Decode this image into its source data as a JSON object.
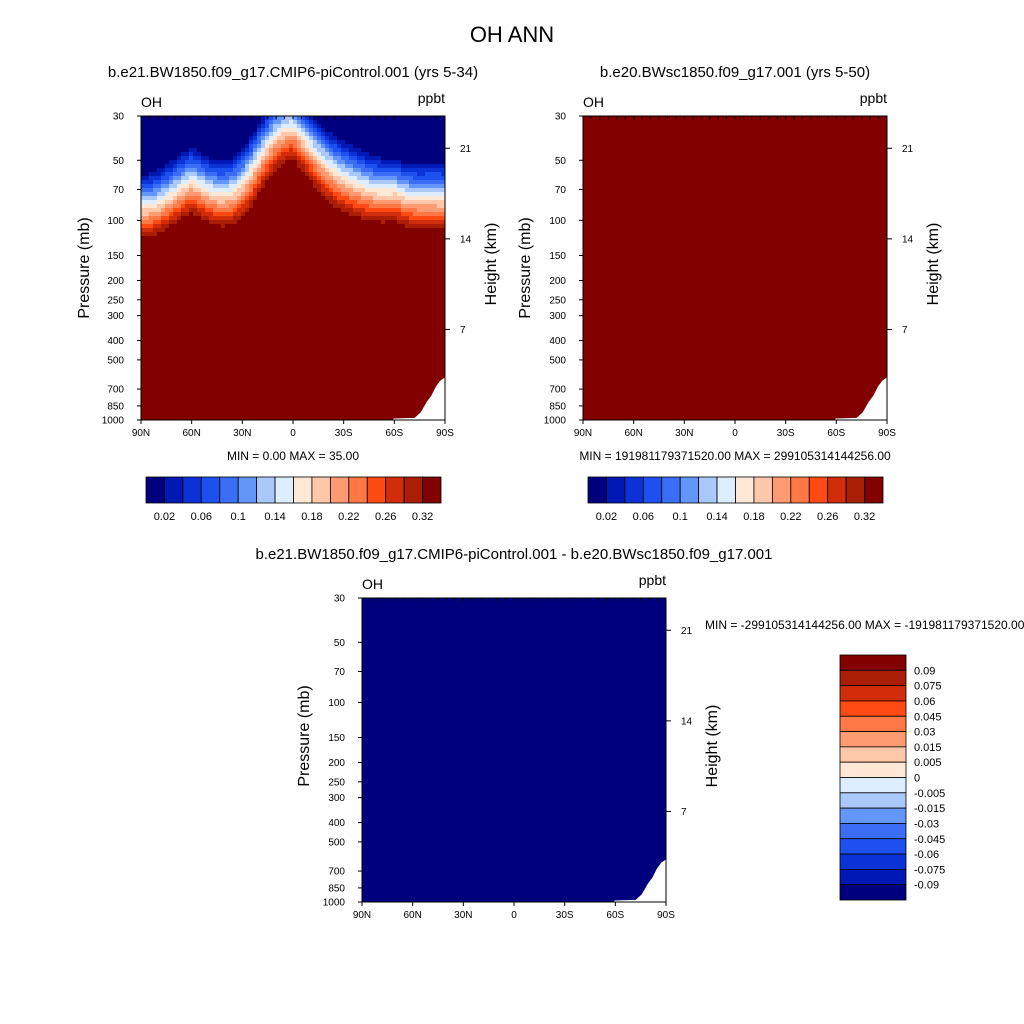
{
  "title": "OH ANN",
  "colors": {
    "palette": [
      "#00007f",
      "#0019b4",
      "#0a32d7",
      "#1e50f0",
      "#3c6ef5",
      "#6496fa",
      "#aac8fa",
      "#dceeff",
      "#ffe8d6",
      "#ffc8aa",
      "#ff9b73",
      "#ff7846",
      "#ff4a14",
      "#d22d0a",
      "#aa1e05",
      "#820000"
    ],
    "diff_palette": [
      "#00007f",
      "#0019b4",
      "#0a32d7",
      "#1e50f0",
      "#3c6ef5",
      "#6496fa",
      "#aac8fa",
      "#dceeff",
      "#ffe8d6",
      "#ffc8aa",
      "#ff9b73",
      "#ff7846",
      "#ff4a14",
      "#d22d0a",
      "#aa1e05",
      "#820000"
    ]
  },
  "chart_data": [
    {
      "type": "heatmap",
      "title": "b.e21.BW1850.f09_g17.CMIP6-piControl.001 (yrs 5-34)",
      "left_label": "OH",
      "right_label": "ppbt",
      "xlabel": "",
      "ylabel": "Pressure (mb)",
      "ylabel_right": "Height (km)",
      "x_ticks": [
        "90N",
        "60N",
        "30N",
        "0",
        "30S",
        "60S",
        "90S"
      ],
      "y_ticks": [
        "30",
        "50",
        "70",
        "100",
        "150",
        "200",
        "250",
        "300",
        "400",
        "500",
        "700",
        "850",
        "1000"
      ],
      "y_ticks_right": [
        "21",
        "14",
        "7"
      ],
      "ylim": [
        1000,
        30
      ],
      "y_scale": "log",
      "min_label": "MIN =   0.00  MAX =  35.00",
      "colorbar_labels": [
        "0.02",
        "0.06",
        "0.1",
        "0.14",
        "0.18",
        "0.22",
        "0.26",
        "0.32"
      ],
      "field": "zonal mean OH"
    },
    {
      "type": "heatmap",
      "title": "b.e20.BWsc1850.f09_g17.001 (yrs 5-50)",
      "left_label": "OH",
      "right_label": "ppbt",
      "xlabel": "",
      "ylabel": "Pressure (mb)",
      "ylabel_right": "Height (km)",
      "x_ticks": [
        "90N",
        "60N",
        "30N",
        "0",
        "30S",
        "60S",
        "90S"
      ],
      "y_ticks": [
        "30",
        "50",
        "70",
        "100",
        "150",
        "200",
        "250",
        "300",
        "400",
        "500",
        "700",
        "850",
        "1000"
      ],
      "y_ticks_right": [
        "21",
        "14",
        "7"
      ],
      "ylim": [
        1000,
        30
      ],
      "y_scale": "log",
      "min_label": "MIN = 191981179371520.00  MAX = 299105314144256.00",
      "colorbar_labels": [
        "0.02",
        "0.06",
        "0.1",
        "0.14",
        "0.18",
        "0.22",
        "0.26",
        "0.32"
      ],
      "field": "uniform"
    },
    {
      "type": "heatmap",
      "title": "b.e21.BW1850.f09_g17.CMIP6-piControl.001 - b.e20.BWsc1850.f09_g17.001",
      "left_label": "OH",
      "right_label": "ppbt",
      "xlabel": "",
      "ylabel": "Pressure (mb)",
      "ylabel_right": "Height (km)",
      "x_ticks": [
        "90N",
        "60N",
        "30N",
        "0",
        "30S",
        "60S",
        "90S"
      ],
      "y_ticks": [
        "30",
        "50",
        "70",
        "100",
        "150",
        "200",
        "250",
        "300",
        "400",
        "500",
        "700",
        "850",
        "1000"
      ],
      "y_ticks_right": [
        "21",
        "14",
        "7"
      ],
      "ylim": [
        1000,
        30
      ],
      "y_scale": "log",
      "min_label": "MIN = -299105314144256.00  MAX = -191981179371520.00",
      "colorbar_labels": [
        "0.09",
        "0.075",
        "0.06",
        "0.045",
        "0.03",
        "0.015",
        "0.005",
        "0",
        "-0.005",
        "-0.015",
        "-0.03",
        "-0.045",
        "-0.06",
        "-0.075",
        "-0.09"
      ],
      "field": "uniform"
    }
  ]
}
